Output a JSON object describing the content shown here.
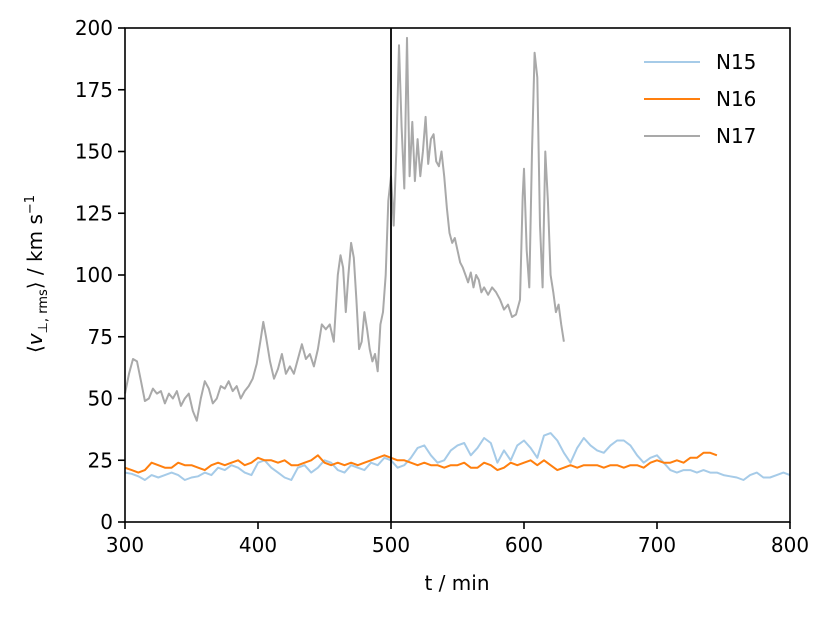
{
  "chart_data": {
    "type": "line",
    "xlabel": "t / min",
    "ylabel_parts": {
      "open": "⟨",
      "v": "v",
      "sub": "⊥, rms",
      "close": "⟩ / km s",
      "sup": "−1"
    },
    "xlim": [
      300,
      800
    ],
    "ylim": [
      0,
      200
    ],
    "xticks": [
      300,
      400,
      500,
      600,
      700,
      800
    ],
    "yticks": [
      0,
      25,
      50,
      75,
      100,
      125,
      150,
      175,
      200
    ],
    "grid": false,
    "legend_position": "top-right",
    "vline_x": 500,
    "series": [
      {
        "name": "N15",
        "color": "#a6cbe8",
        "points": [
          [
            300,
            20
          ],
          [
            305,
            19.5
          ],
          [
            310,
            18.5
          ],
          [
            315,
            17
          ],
          [
            320,
            19
          ],
          [
            325,
            18
          ],
          [
            330,
            19
          ],
          [
            335,
            20
          ],
          [
            340,
            19
          ],
          [
            345,
            17
          ],
          [
            350,
            18
          ],
          [
            355,
            18.5
          ],
          [
            360,
            20
          ],
          [
            365,
            19
          ],
          [
            370,
            22
          ],
          [
            375,
            21
          ],
          [
            380,
            23
          ],
          [
            385,
            22
          ],
          [
            390,
            20
          ],
          [
            395,
            19
          ],
          [
            400,
            24
          ],
          [
            405,
            25
          ],
          [
            410,
            22
          ],
          [
            415,
            20
          ],
          [
            420,
            18
          ],
          [
            425,
            17
          ],
          [
            430,
            22
          ],
          [
            435,
            23
          ],
          [
            440,
            20
          ],
          [
            445,
            22
          ],
          [
            450,
            25
          ],
          [
            455,
            24
          ],
          [
            460,
            21
          ],
          [
            465,
            20
          ],
          [
            470,
            23
          ],
          [
            475,
            22
          ],
          [
            480,
            21
          ],
          [
            485,
            24
          ],
          [
            490,
            23
          ],
          [
            495,
            26
          ],
          [
            500,
            25
          ],
          [
            505,
            22
          ],
          [
            510,
            23
          ],
          [
            515,
            26
          ],
          [
            520,
            30
          ],
          [
            525,
            31
          ],
          [
            530,
            27
          ],
          [
            535,
            24
          ],
          [
            540,
            25
          ],
          [
            545,
            29
          ],
          [
            550,
            31
          ],
          [
            555,
            32
          ],
          [
            560,
            27
          ],
          [
            565,
            30
          ],
          [
            570,
            34
          ],
          [
            575,
            32
          ],
          [
            580,
            24
          ],
          [
            585,
            29
          ],
          [
            590,
            25
          ],
          [
            595,
            31
          ],
          [
            600,
            33
          ],
          [
            605,
            30
          ],
          [
            610,
            26
          ],
          [
            615,
            35
          ],
          [
            620,
            36
          ],
          [
            625,
            33
          ],
          [
            630,
            28
          ],
          [
            635,
            24
          ],
          [
            640,
            30
          ],
          [
            645,
            34
          ],
          [
            650,
            31
          ],
          [
            655,
            29
          ],
          [
            660,
            28
          ],
          [
            665,
            31
          ],
          [
            670,
            33
          ],
          [
            675,
            33
          ],
          [
            680,
            31
          ],
          [
            685,
            27
          ],
          [
            690,
            24
          ],
          [
            695,
            26
          ],
          [
            700,
            27
          ],
          [
            705,
            24
          ],
          [
            710,
            21
          ],
          [
            715,
            20
          ],
          [
            720,
            21
          ],
          [
            725,
            21
          ],
          [
            730,
            20
          ],
          [
            735,
            21
          ],
          [
            740,
            20
          ],
          [
            745,
            20
          ],
          [
            750,
            19
          ],
          [
            755,
            18.5
          ],
          [
            760,
            18
          ],
          [
            765,
            17
          ],
          [
            770,
            19
          ],
          [
            775,
            20
          ],
          [
            780,
            18
          ],
          [
            785,
            18
          ],
          [
            790,
            19
          ],
          [
            795,
            20
          ],
          [
            800,
            19
          ]
        ]
      },
      {
        "name": "N16",
        "color": "#ff7f0e",
        "points": [
          [
            300,
            22
          ],
          [
            305,
            21
          ],
          [
            310,
            20
          ],
          [
            315,
            21
          ],
          [
            320,
            24
          ],
          [
            325,
            23
          ],
          [
            330,
            22
          ],
          [
            335,
            22
          ],
          [
            340,
            24
          ],
          [
            345,
            23
          ],
          [
            350,
            23
          ],
          [
            355,
            22
          ],
          [
            360,
            21
          ],
          [
            365,
            23
          ],
          [
            370,
            24
          ],
          [
            375,
            23
          ],
          [
            380,
            24
          ],
          [
            385,
            25
          ],
          [
            390,
            23
          ],
          [
            395,
            24
          ],
          [
            400,
            26
          ],
          [
            405,
            25
          ],
          [
            410,
            25
          ],
          [
            415,
            24
          ],
          [
            420,
            25
          ],
          [
            425,
            23
          ],
          [
            430,
            23
          ],
          [
            435,
            24
          ],
          [
            440,
            25
          ],
          [
            445,
            27
          ],
          [
            450,
            24
          ],
          [
            455,
            23
          ],
          [
            460,
            24
          ],
          [
            465,
            23
          ],
          [
            470,
            24
          ],
          [
            475,
            23
          ],
          [
            480,
            24
          ],
          [
            485,
            25
          ],
          [
            490,
            26
          ],
          [
            495,
            27
          ],
          [
            500,
            26
          ],
          [
            505,
            25
          ],
          [
            510,
            25
          ],
          [
            515,
            24
          ],
          [
            520,
            23
          ],
          [
            525,
            24
          ],
          [
            530,
            23
          ],
          [
            535,
            23
          ],
          [
            540,
            22
          ],
          [
            545,
            23
          ],
          [
            550,
            23
          ],
          [
            555,
            24
          ],
          [
            560,
            22
          ],
          [
            565,
            22
          ],
          [
            570,
            24
          ],
          [
            575,
            23
          ],
          [
            580,
            21
          ],
          [
            585,
            22
          ],
          [
            590,
            24
          ],
          [
            595,
            23
          ],
          [
            600,
            24
          ],
          [
            605,
            25
          ],
          [
            610,
            23
          ],
          [
            615,
            25
          ],
          [
            620,
            23
          ],
          [
            625,
            21
          ],
          [
            630,
            22
          ],
          [
            635,
            23
          ],
          [
            640,
            22
          ],
          [
            645,
            23
          ],
          [
            650,
            23
          ],
          [
            655,
            23
          ],
          [
            660,
            22
          ],
          [
            665,
            23
          ],
          [
            670,
            23
          ],
          [
            675,
            22
          ],
          [
            680,
            23
          ],
          [
            685,
            23
          ],
          [
            690,
            22
          ],
          [
            695,
            24
          ],
          [
            700,
            25
          ],
          [
            705,
            24
          ],
          [
            710,
            24
          ],
          [
            715,
            25
          ],
          [
            720,
            24
          ],
          [
            725,
            26
          ],
          [
            730,
            26
          ],
          [
            735,
            28
          ],
          [
            740,
            28
          ],
          [
            745,
            27
          ]
        ]
      },
      {
        "name": "N17",
        "color": "#a9a9a9",
        "points": [
          [
            300,
            52
          ],
          [
            303,
            60
          ],
          [
            306,
            66
          ],
          [
            309,
            65
          ],
          [
            312,
            57
          ],
          [
            315,
            49
          ],
          [
            318,
            50
          ],
          [
            321,
            54
          ],
          [
            324,
            52
          ],
          [
            327,
            53
          ],
          [
            330,
            48
          ],
          [
            333,
            52
          ],
          [
            336,
            50
          ],
          [
            339,
            53
          ],
          [
            342,
            47
          ],
          [
            345,
            50
          ],
          [
            348,
            52
          ],
          [
            351,
            45
          ],
          [
            354,
            41
          ],
          [
            357,
            50
          ],
          [
            360,
            57
          ],
          [
            363,
            54
          ],
          [
            366,
            48
          ],
          [
            369,
            50
          ],
          [
            372,
            55
          ],
          [
            375,
            54
          ],
          [
            378,
            57
          ],
          [
            381,
            53
          ],
          [
            384,
            55
          ],
          [
            387,
            50
          ],
          [
            390,
            53
          ],
          [
            393,
            55
          ],
          [
            396,
            58
          ],
          [
            399,
            64
          ],
          [
            402,
            74
          ],
          [
            404,
            81
          ],
          [
            406,
            75
          ],
          [
            409,
            65
          ],
          [
            412,
            58
          ],
          [
            415,
            62
          ],
          [
            418,
            68
          ],
          [
            421,
            60
          ],
          [
            424,
            63
          ],
          [
            427,
            60
          ],
          [
            430,
            66
          ],
          [
            433,
            72
          ],
          [
            436,
            66
          ],
          [
            439,
            68
          ],
          [
            442,
            63
          ],
          [
            445,
            70
          ],
          [
            448,
            80
          ],
          [
            451,
            78
          ],
          [
            454,
            80
          ],
          [
            457,
            73
          ],
          [
            460,
            100
          ],
          [
            462,
            108
          ],
          [
            464,
            103
          ],
          [
            466,
            85
          ],
          [
            468,
            100
          ],
          [
            470,
            113
          ],
          [
            472,
            107
          ],
          [
            474,
            90
          ],
          [
            476,
            70
          ],
          [
            478,
            73
          ],
          [
            480,
            85
          ],
          [
            482,
            78
          ],
          [
            484,
            70
          ],
          [
            486,
            65
          ],
          [
            488,
            68
          ],
          [
            490,
            61
          ],
          [
            492,
            80
          ],
          [
            494,
            85
          ],
          [
            496,
            100
          ],
          [
            498,
            130
          ],
          [
            500,
            140
          ],
          [
            502,
            120
          ],
          [
            504,
            150
          ],
          [
            506,
            193
          ],
          [
            508,
            160
          ],
          [
            510,
            135
          ],
          [
            512,
            196
          ],
          [
            514,
            140
          ],
          [
            516,
            162
          ],
          [
            518,
            138
          ],
          [
            520,
            155
          ],
          [
            522,
            140
          ],
          [
            524,
            150
          ],
          [
            526,
            164
          ],
          [
            528,
            145
          ],
          [
            530,
            155
          ],
          [
            532,
            157
          ],
          [
            534,
            146
          ],
          [
            536,
            144
          ],
          [
            538,
            150
          ],
          [
            540,
            140
          ],
          [
            542,
            127
          ],
          [
            544,
            117
          ],
          [
            546,
            113
          ],
          [
            548,
            115
          ],
          [
            550,
            110
          ],
          [
            552,
            105
          ],
          [
            554,
            103
          ],
          [
            556,
            100
          ],
          [
            558,
            97
          ],
          [
            560,
            101
          ],
          [
            562,
            95
          ],
          [
            564,
            100
          ],
          [
            566,
            98
          ],
          [
            568,
            93
          ],
          [
            570,
            95
          ],
          [
            573,
            92
          ],
          [
            576,
            95
          ],
          [
            579,
            93
          ],
          [
            582,
            90
          ],
          [
            585,
            86
          ],
          [
            588,
            88
          ],
          [
            591,
            83
          ],
          [
            594,
            84
          ],
          [
            597,
            90
          ],
          [
            599,
            132
          ],
          [
            600,
            143
          ],
          [
            602,
            110
          ],
          [
            604,
            95
          ],
          [
            606,
            150
          ],
          [
            608,
            190
          ],
          [
            610,
            180
          ],
          [
            612,
            120
          ],
          [
            614,
            95
          ],
          [
            616,
            150
          ],
          [
            618,
            130
          ],
          [
            620,
            100
          ],
          [
            622,
            93
          ],
          [
            624,
            85
          ],
          [
            626,
            88
          ],
          [
            628,
            80
          ],
          [
            630,
            73
          ]
        ]
      }
    ]
  }
}
